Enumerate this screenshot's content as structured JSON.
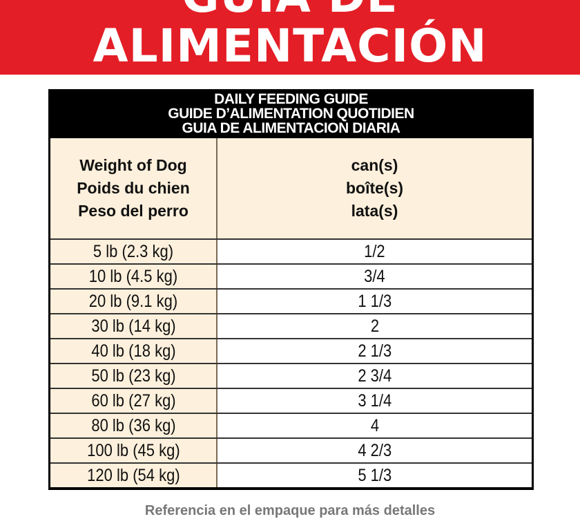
{
  "banner": {
    "line1": "GUIA DE",
    "line2": "ALIMENTACIÓN",
    "color": "#e41e26"
  },
  "table": {
    "title_lines": [
      "DAILY FEEDING GUIDE",
      "GUIDE D’ALIMENTATION QUOTIDIEN",
      "GUIA DE ALIMENTACION DIARIA"
    ],
    "col1_header": [
      "Weight of Dog",
      "Poids du chien",
      "Peso del perro"
    ],
    "col2_header": [
      "can(s)",
      "boîte(s)",
      "lata(s)"
    ],
    "rows": [
      {
        "weight": "5 lb (2.3 kg)",
        "cans": "1/2"
      },
      {
        "weight": "10 lb (4.5 kg)",
        "cans": "3/4"
      },
      {
        "weight": "20 lb (9.1 kg)",
        "cans": "1 1/3"
      },
      {
        "weight": "30 lb (14 kg)",
        "cans": "2"
      },
      {
        "weight": "40 lb (18 kg)",
        "cans": "2 1/3"
      },
      {
        "weight": "50 lb (23 kg)",
        "cans": "2 3/4"
      },
      {
        "weight": "60 lb (27 kg)",
        "cans": "3 1/4"
      },
      {
        "weight": "80 lb (36 kg)",
        "cans": "4"
      },
      {
        "weight": "100 lb (45 kg)",
        "cans": "4 2/3"
      },
      {
        "weight": "120 lb (54 kg)",
        "cans": "5 1/3"
      }
    ]
  },
  "footer": "Referencia en el empaque para más detalles"
}
